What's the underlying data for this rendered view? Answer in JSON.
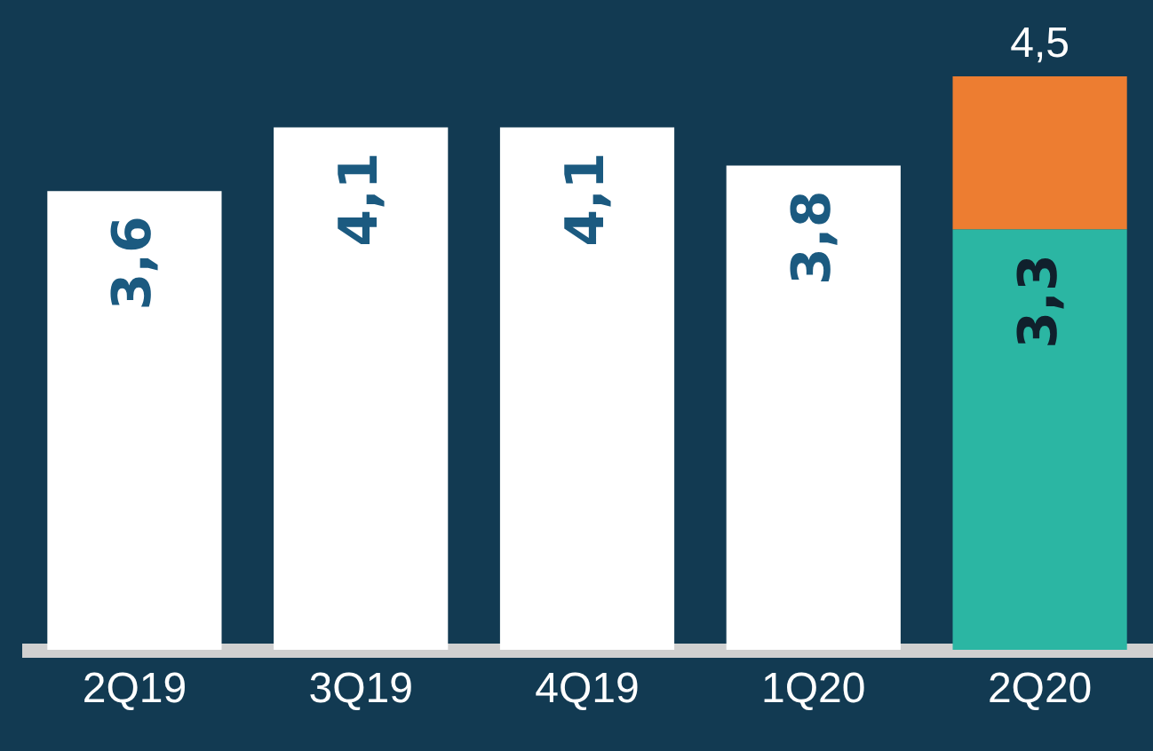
{
  "chart_data": {
    "type": "bar",
    "stacked": true,
    "categories": [
      "2Q19",
      "3Q19",
      "4Q19",
      "1Q20",
      "2Q20"
    ],
    "series": [
      {
        "colors": [
          "#ffffff",
          "#ffffff",
          "#ffffff",
          "#ffffff",
          "#2bb6a3"
        ],
        "values": [
          3.6,
          4.1,
          4.1,
          3.8,
          3.3
        ],
        "value_labels": [
          "3,6",
          "4,1",
          "4,1",
          "3,8",
          "3,3"
        ]
      },
      {
        "color": "#ed7d31",
        "values": [
          null,
          null,
          null,
          null,
          1.2
        ]
      }
    ],
    "totals": [
      null,
      null,
      null,
      null,
      "4,5"
    ],
    "ylim": [
      0,
      5.1
    ],
    "grid": false
  }
}
